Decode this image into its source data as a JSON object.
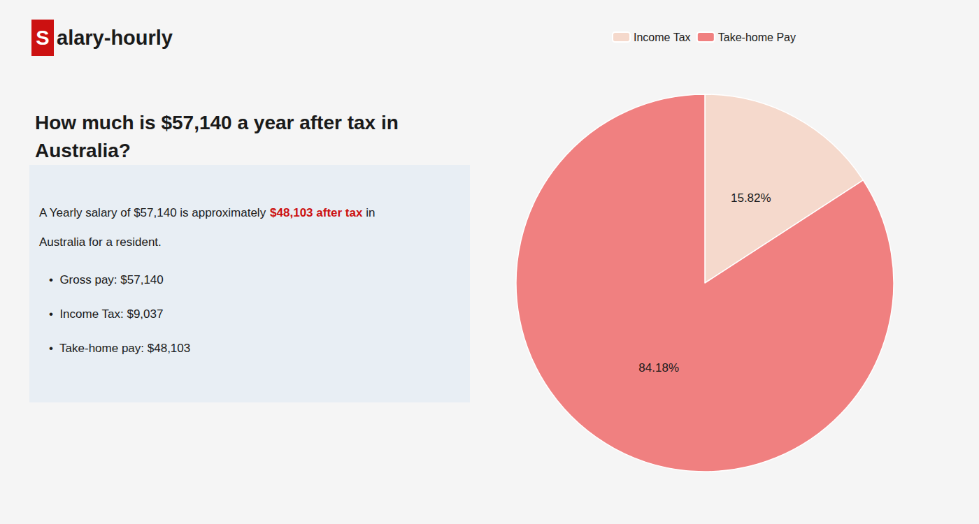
{
  "chart_data": {
    "type": "pie",
    "title": "How much is $57,140 a year after tax in\nAustralia?",
    "categories": [
      "Income Tax",
      "Take-home Pay"
    ],
    "values": [
      15.82,
      84.18
    ],
    "value_labels": [
      "15.82%",
      "84.18%"
    ],
    "colors": [
      "#f5d9cc",
      "#f08080"
    ],
    "data_labels": true,
    "legend": "top",
    "annotations": [
      {
        "text": "S",
        "color": "#cc1111"
      },
      {
        "text": "alary-hourly"
      },
      {
        "text": "A Yearly salary of $57,140 is approximately "
      },
      {
        "text": "$48,103 after tax",
        "color": "#cc1111"
      },
      {
        "text": " in"
      },
      {
        "text": "Australia for a resident."
      },
      {
        "text": "•  Gross pay: $57,140"
      },
      {
        "text": "•  Income Tax: $9,037"
      },
      {
        "text": "•  Take-home pay: $48,103"
      }
    ]
  }
}
